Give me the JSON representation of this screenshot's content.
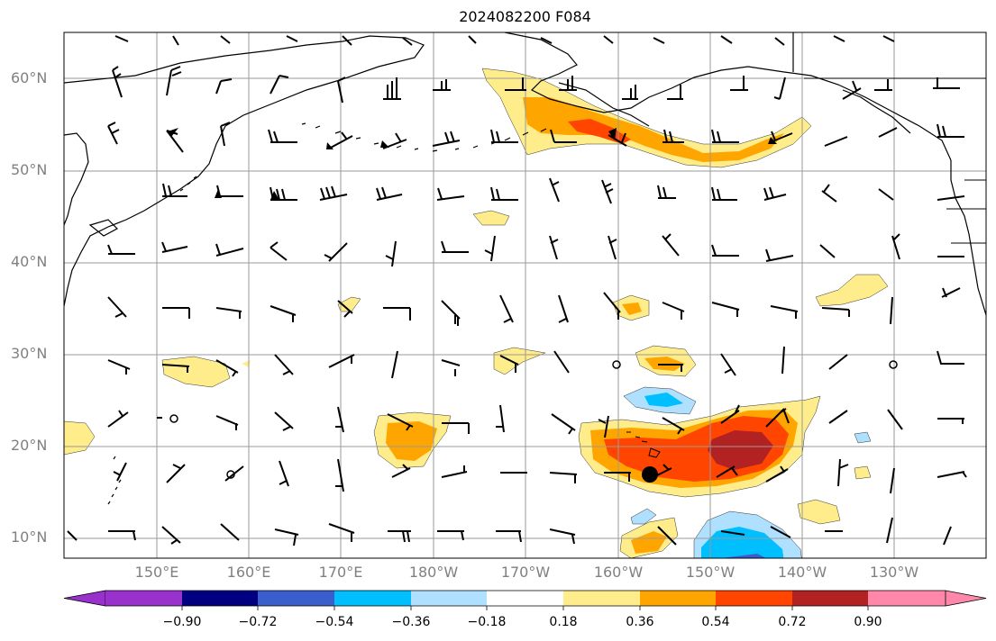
{
  "title": "2024082200 F084",
  "lat_labels": [
    "60°N",
    "50°N",
    "40°N",
    "30°N",
    "20°N",
    "10°N"
  ],
  "lon_labels": [
    "150°E",
    "160°E",
    "170°E",
    "180°W",
    "170°W",
    "160°W",
    "150°W",
    "140°W",
    "130°W"
  ],
  "colorbar": {
    "ticks": [
      "−0.90",
      "−0.72",
      "−0.54",
      "−0.36",
      "−0.18",
      "0.18",
      "0.36",
      "0.54",
      "0.72",
      "0.90"
    ],
    "colors": [
      "#9932cc",
      "#000080",
      "#3a5fcd",
      "#00bfff",
      "#b0e0ff",
      "#ffffff",
      "#ffec8b",
      "#ffa500",
      "#ff4500",
      "#b22222",
      "#ff88aa"
    ]
  },
  "map": {
    "projection": "PlateCarree",
    "lon_range": [
      "140°E",
      "120°W"
    ],
    "lat_range": [
      "8°N",
      "65°N"
    ],
    "gridlines": true,
    "field": "shaded anomaly with wind barbs",
    "marker": "black dot near 17°N 156°W"
  }
}
